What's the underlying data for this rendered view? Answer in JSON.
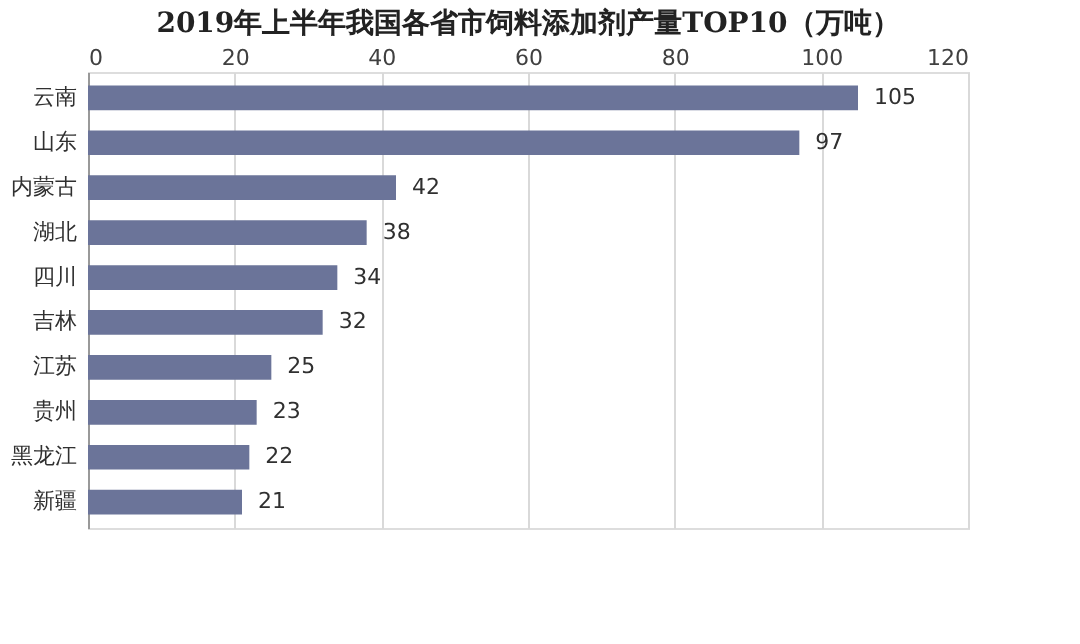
{
  "chart_data": {
    "type": "bar",
    "orientation": "horizontal",
    "title": "2019年上半年我国各省市饲料添加剂产量TOP10（万吨）",
    "categories": [
      "云南",
      "山东",
      "内蒙古",
      "湖北",
      "四川",
      "吉林",
      "江苏",
      "贵州",
      "黑龙江",
      "新疆"
    ],
    "values": [
      105,
      97,
      42,
      38,
      34,
      32,
      25,
      23,
      22,
      21
    ],
    "color": "#6b7499",
    "xlim": [
      0,
      120
    ],
    "xticks": [
      0,
      20,
      40,
      60,
      80,
      100,
      120
    ],
    "grid": "x",
    "data_labels": true
  }
}
